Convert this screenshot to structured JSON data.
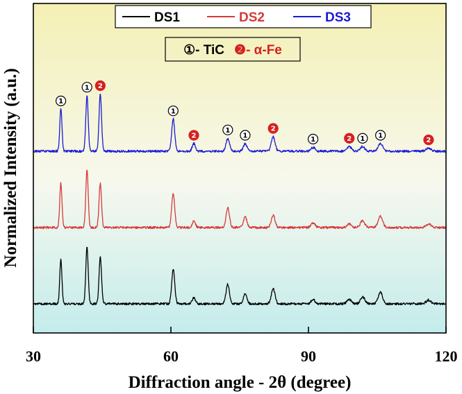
{
  "chart_data": {
    "type": "line",
    "title": "",
    "xlabel": "Diffraction angle - 2θ (degree)",
    "ylabel": "Normalized Intensity (a.u.)",
    "xlim": [
      30,
      120
    ],
    "xticks": [
      "30",
      "60",
      "90",
      "120"
    ],
    "grid": false,
    "legend_position": "top-center",
    "background_gradient": [
      "#f4f0b4",
      "#f6f8ee",
      "#c4ecec"
    ],
    "series": [
      {
        "name": "DS1",
        "color": "#000000",
        "baseline": 0.0
      },
      {
        "name": "DS2",
        "color": "#d63a3a",
        "baseline": 1.0
      },
      {
        "name": "DS3",
        "color": "#1a1ad6",
        "baseline": 2.0
      }
    ],
    "peaks": [
      {
        "x": 36.0,
        "phase": "TiC",
        "marker": "1",
        "rel": [
          0.58,
          0.58,
          0.55
        ]
      },
      {
        "x": 41.7,
        "phase": "TiC",
        "marker": "1",
        "rel": [
          0.75,
          0.76,
          0.73
        ]
      },
      {
        "x": 44.6,
        "phase": "α-Fe",
        "marker": "2",
        "rel": [
          0.62,
          0.58,
          0.75
        ]
      },
      {
        "x": 60.5,
        "phase": "TiC",
        "marker": "1",
        "rel": [
          0.45,
          0.45,
          0.42
        ]
      },
      {
        "x": 65.0,
        "phase": "α-Fe",
        "marker": "2",
        "rel": [
          0.08,
          0.08,
          0.1
        ]
      },
      {
        "x": 72.4,
        "phase": "TiC",
        "marker": "1",
        "rel": [
          0.26,
          0.26,
          0.17
        ]
      },
      {
        "x": 76.2,
        "phase": "TiC",
        "marker": "1",
        "rel": [
          0.14,
          0.14,
          0.1
        ]
      },
      {
        "x": 82.3,
        "phase": "α-Fe",
        "marker": "2",
        "rel": [
          0.2,
          0.16,
          0.19
        ]
      },
      {
        "x": 91.0,
        "phase": "TiC",
        "marker": "1",
        "rel": [
          0.06,
          0.06,
          0.05
        ]
      },
      {
        "x": 98.9,
        "phase": "α-Fe",
        "marker": "2",
        "rel": [
          0.06,
          0.05,
          0.06
        ]
      },
      {
        "x": 101.8,
        "phase": "TiC",
        "marker": "1",
        "rel": [
          0.09,
          0.09,
          0.06
        ]
      },
      {
        "x": 105.7,
        "phase": "TiC",
        "marker": "1",
        "rel": [
          0.15,
          0.15,
          0.1
        ]
      },
      {
        "x": 116.2,
        "phase": "α-Fe",
        "marker": "2",
        "rel": [
          0.05,
          0.05,
          0.04
        ]
      }
    ],
    "phase_legend": [
      {
        "marker": "1",
        "symbol": "①",
        "label": "- TiC",
        "color": "#000000"
      },
      {
        "marker": "2",
        "symbol": "❷",
        "label": "- α-Fe",
        "color": "#d62020"
      }
    ]
  }
}
